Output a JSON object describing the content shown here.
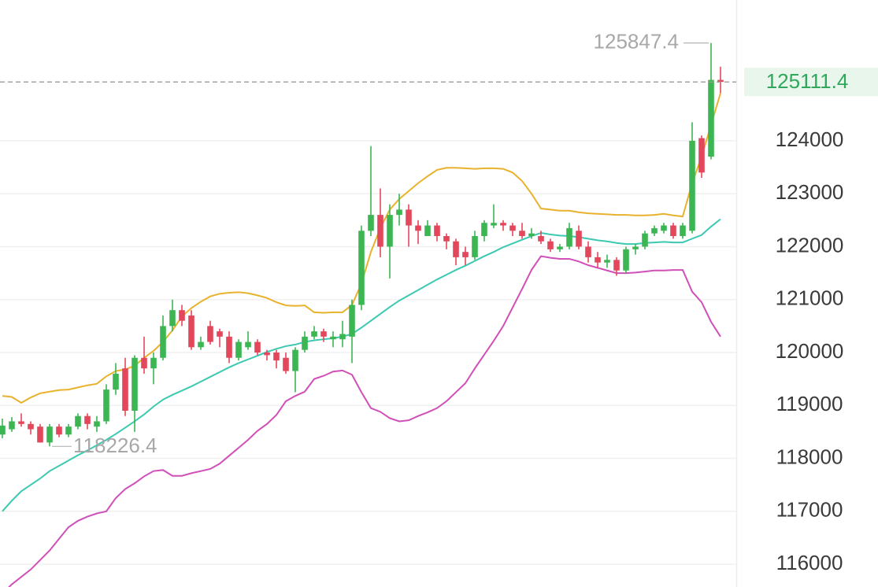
{
  "chart_data": {
    "type": "candlestick",
    "ylim": [
      115570,
      126660
    ],
    "yticks": [
      116000,
      117000,
      118000,
      119000,
      120000,
      121000,
      122000,
      123000,
      124000
    ],
    "grid": true,
    "up_color": "#3cb553",
    "down_color": "#e2475c",
    "max_price": 125847.4,
    "min_price": 118226.4,
    "last_price": 125111.4,
    "last_price_color": "#2ea85a",
    "open": [
      118450,
      118550,
      118700,
      118650,
      118600,
      118300,
      118600,
      118450,
      118600,
      118800,
      118600,
      118700,
      119300,
      119700,
      118900,
      119900,
      119700,
      119900,
      120500,
      120800,
      120700,
      120100,
      120500,
      120400,
      120300,
      119900,
      120100,
      120200,
      120000,
      120000,
      119900,
      119650,
      120050,
      120300,
      120400,
      120250,
      120250,
      120300,
      120900,
      122300,
      122600,
      122000,
      122600,
      122700,
      122400,
      122200,
      122400,
      122200,
      122100,
      121900,
      121800,
      122200,
      122400,
      122450,
      122400,
      122300,
      122200,
      122200,
      122100,
      121950,
      122000,
      122300,
      122000,
      121800,
      121700,
      121750,
      121550,
      121950,
      122000,
      122250,
      122300,
      122400,
      122200,
      122300,
      124050,
      123700,
      125150
    ],
    "high": [
      118750,
      118780,
      118850,
      118700,
      118650,
      118650,
      118650,
      118650,
      118850,
      118850,
      118800,
      119400,
      119800,
      119900,
      119950,
      120300,
      120000,
      120700,
      121000,
      120900,
      120800,
      120300,
      120600,
      120450,
      120400,
      120250,
      120400,
      120250,
      120050,
      120050,
      120000,
      120100,
      120400,
      120500,
      120450,
      120400,
      120600,
      121000,
      122400,
      123900,
      123100,
      122800,
      123000,
      122800,
      122500,
      122500,
      122450,
      122250,
      122150,
      122000,
      122300,
      122500,
      122800,
      122500,
      122450,
      122450,
      122350,
      122300,
      122150,
      122050,
      122450,
      122400,
      122100,
      121900,
      121850,
      121800,
      122000,
      122050,
      122300,
      122400,
      122450,
      122450,
      122450,
      124350,
      124100,
      125847.4,
      125400
    ],
    "low": [
      118380,
      118500,
      118600,
      118450,
      118300,
      118226.4,
      118400,
      118400,
      118550,
      118550,
      118500,
      118650,
      119200,
      118800,
      118500,
      119600,
      119400,
      119850,
      120400,
      120500,
      120050,
      120050,
      120150,
      120100,
      119800,
      119850,
      120050,
      119950,
      119850,
      119700,
      119600,
      119250,
      120000,
      120250,
      120200,
      120100,
      120100,
      119800,
      120800,
      122200,
      121800,
      121400,
      122400,
      122000,
      122050,
      122200,
      122100,
      121950,
      121650,
      121650,
      121750,
      122100,
      122350,
      122300,
      122200,
      122150,
      122150,
      122050,
      121900,
      121900,
      121950,
      121950,
      121700,
      121600,
      121600,
      121450,
      121500,
      121850,
      121950,
      122200,
      122250,
      122150,
      122150,
      122250,
      123300,
      123650,
      124900
    ],
    "close": [
      118620,
      118700,
      118650,
      118550,
      118300,
      118600,
      118450,
      118600,
      118800,
      118650,
      118700,
      119300,
      119600,
      118900,
      119900,
      119700,
      119900,
      120500,
      120800,
      120600,
      120100,
      120200,
      120200,
      120300,
      119900,
      120200,
      120200,
      120000,
      119950,
      119850,
      119650,
      120050,
      120300,
      120400,
      120300,
      120300,
      120350,
      120900,
      122300,
      122600,
      122000,
      122600,
      122700,
      122400,
      122300,
      122400,
      122200,
      122100,
      121800,
      121800,
      122200,
      122450,
      122450,
      122400,
      122300,
      122200,
      122250,
      122100,
      121950,
      122000,
      122350,
      122000,
      121800,
      121700,
      121750,
      121550,
      121950,
      122000,
      122250,
      122350,
      122400,
      122200,
      122400,
      124000,
      123400,
      125150,
      125111.4
    ],
    "bands": [
      {
        "color": "#e8b22c",
        "values": [
          119180,
          119160,
          119050,
          119150,
          119230,
          119260,
          119290,
          119300,
          119340,
          119380,
          119410,
          119550,
          119650,
          119680,
          119750,
          119900,
          120030,
          120200,
          120420,
          120680,
          120840,
          120960,
          121060,
          121110,
          121130,
          121140,
          121120,
          121080,
          121030,
          120950,
          120890,
          120880,
          120890,
          120760,
          120750,
          120760,
          120760,
          120900,
          121300,
          121900,
          122350,
          122700,
          122900,
          123050,
          123200,
          123330,
          123450,
          123490,
          123490,
          123480,
          123470,
          123480,
          123480,
          123470,
          123400,
          123240,
          123000,
          122720,
          122700,
          122680,
          122680,
          122650,
          122630,
          122620,
          122610,
          122600,
          122600,
          122590,
          122590,
          122600,
          122620,
          122590,
          122570,
          123200,
          123700,
          124300,
          124900
        ]
      },
      {
        "color": "#3cc9b2",
        "values": [
          117000,
          117200,
          117380,
          117500,
          117620,
          117760,
          117860,
          117960,
          118060,
          118150,
          118250,
          118350,
          118460,
          118580,
          118700,
          118830,
          118980,
          119110,
          119200,
          119280,
          119360,
          119450,
          119540,
          119630,
          119720,
          119800,
          119870,
          119940,
          120010,
          120070,
          120120,
          120150,
          120200,
          120230,
          120250,
          120270,
          120300,
          120350,
          120470,
          120600,
          120730,
          120860,
          120980,
          121080,
          121180,
          121280,
          121380,
          121470,
          121560,
          121640,
          121730,
          121820,
          121900,
          121990,
          122060,
          122130,
          122200,
          122260,
          122230,
          122210,
          122200,
          122180,
          122150,
          122120,
          122100,
          122070,
          122050,
          122050,
          122070,
          122080,
          122090,
          122080,
          122080,
          122150,
          122220,
          122380,
          122520
        ]
      },
      {
        "color": "#d04fb9",
        "values": [
          115450,
          115620,
          115760,
          115900,
          116080,
          116260,
          116480,
          116700,
          116820,
          116900,
          116960,
          117000,
          117250,
          117420,
          117530,
          117660,
          117760,
          117780,
          117670,
          117670,
          117720,
          117760,
          117800,
          117900,
          118050,
          118200,
          118350,
          118520,
          118650,
          118820,
          119080,
          119180,
          119260,
          119500,
          119560,
          119640,
          119660,
          119580,
          119250,
          118950,
          118880,
          118760,
          118700,
          118720,
          118800,
          118870,
          118950,
          119080,
          119250,
          119420,
          119700,
          119960,
          120220,
          120500,
          120850,
          121200,
          121560,
          121820,
          121790,
          121770,
          121770,
          121720,
          121650,
          121600,
          121550,
          121500,
          121500,
          121510,
          121530,
          121550,
          121550,
          121560,
          121560,
          121150,
          120950,
          120580,
          120300
        ]
      }
    ]
  }
}
